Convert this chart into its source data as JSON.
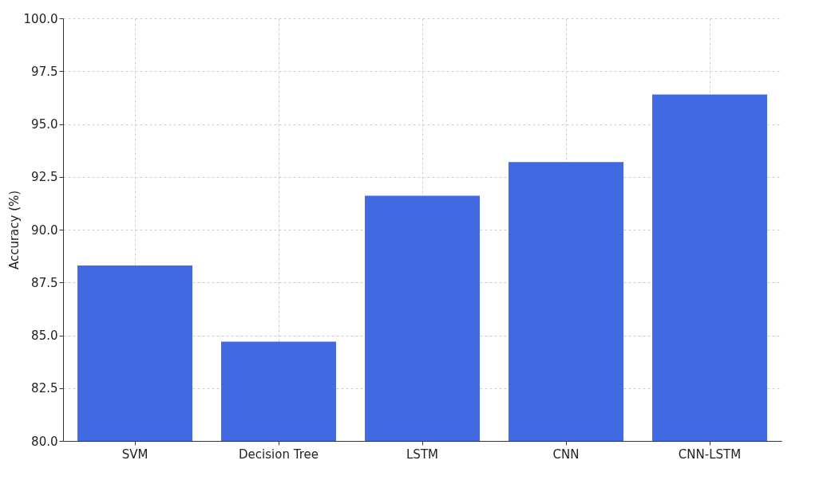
{
  "chart_data": {
    "type": "bar",
    "ylabel": "Accuracy (%)",
    "categories": [
      "SVM",
      "Decision Tree",
      "LSTM",
      "CNN",
      "CNN-LSTM"
    ],
    "values": [
      88.3,
      84.7,
      91.6,
      93.2,
      96.4
    ],
    "color": "#4169e1",
    "ylim": [
      80,
      100
    ],
    "yticks": [
      {
        "value": 80,
        "label": "80.0"
      },
      {
        "value": 82.5,
        "label": "82.5"
      },
      {
        "value": 85,
        "label": "85.0"
      },
      {
        "value": 87.5,
        "label": "87.5"
      },
      {
        "value": 90,
        "label": "90.0"
      },
      {
        "value": 92.5,
        "label": "92.5"
      },
      {
        "value": 95,
        "label": "95.0"
      },
      {
        "value": 97.5,
        "label": "97.5"
      },
      {
        "value": 100,
        "label": "100.0"
      }
    ],
    "grid": true
  }
}
